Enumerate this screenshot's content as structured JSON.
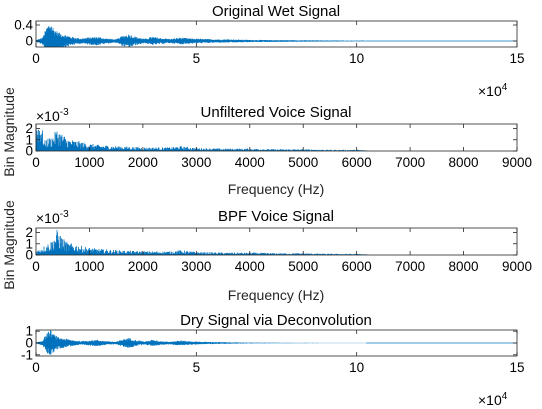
{
  "figure": {
    "background": "#ffffff",
    "line_color": "#0072bd",
    "axis_color": "#262626"
  },
  "chart_data": [
    {
      "type": "line",
      "title": "Original Wet Signal",
      "xlabel": "",
      "ylabel": "",
      "xlim": [
        0,
        150000
      ],
      "ylim": [
        -0.15,
        0.5
      ],
      "xticks": [
        0,
        50000,
        100000,
        150000
      ],
      "xtick_labels": [
        "0",
        "5",
        "10",
        "15"
      ],
      "yticks": [
        0,
        0.4
      ],
      "ytick_labels": [
        "0",
        "0.4"
      ],
      "x_exponent": "4",
      "y_exponent": "",
      "signal_end": 103000,
      "envelope": {
        "x": [
          0,
          2000,
          3500,
          4500,
          5500,
          7000,
          9000,
          11000,
          14000,
          16000,
          19000,
          22000,
          25000,
          27000,
          29000,
          31000,
          34000,
          36000,
          39000,
          42000,
          45000,
          48000,
          52000,
          56000,
          60000,
          65000,
          70000,
          80000,
          90000,
          103000
        ],
        "values": [
          0.02,
          0.08,
          0.35,
          0.45,
          0.3,
          0.2,
          0.15,
          0.1,
          0.06,
          0.08,
          0.1,
          0.06,
          0.04,
          0.12,
          0.16,
          0.1,
          0.05,
          0.1,
          0.07,
          0.05,
          0.08,
          0.06,
          0.05,
          0.04,
          0.04,
          0.03,
          0.025,
          0.02,
          0.015,
          0.01
        ]
      }
    },
    {
      "type": "line",
      "title": "Unfiltered Voice Signal",
      "xlabel": "Frequency (Hz)",
      "ylabel": "Bin Magnitude",
      "xlim": [
        0,
        9000
      ],
      "ylim": [
        0,
        0.0024
      ],
      "xticks": [
        0,
        1000,
        2000,
        3000,
        4000,
        5000,
        6000,
        7000,
        8000,
        9000
      ],
      "xtick_labels": [
        "0",
        "1000",
        "2000",
        "3000",
        "4000",
        "5000",
        "6000",
        "7000",
        "8000",
        "9000"
      ],
      "yticks": [
        0,
        0.001,
        0.002
      ],
      "ytick_labels": [
        "0",
        "1",
        "2"
      ],
      "x_exponent": "",
      "y_exponent": "-3",
      "signal_end": 6200,
      "envelope": {
        "x": [
          0,
          100,
          150,
          200,
          300,
          400,
          500,
          600,
          800,
          1000,
          1200,
          1500,
          2000,
          2500,
          2700,
          3000,
          3500,
          4000,
          4500,
          5000,
          5500,
          6000,
          6200
        ],
        "values": [
          0.0024,
          0.0024,
          0.0008,
          0.001,
          0.0012,
          0.0018,
          0.0014,
          0.001,
          0.0008,
          0.0006,
          0.0005,
          0.0004,
          0.0003,
          0.0003,
          0.0004,
          0.00025,
          0.0002,
          0.0002,
          0.00015,
          0.00015,
          0.0001,
          0.0001,
          5e-05
        ]
      }
    },
    {
      "type": "line",
      "title": "BPF Voice Signal",
      "xlabel": "Frequency (Hz)",
      "ylabel": "Bin Magnitude",
      "xlim": [
        0,
        9000
      ],
      "ylim": [
        0,
        0.0024
      ],
      "xticks": [
        0,
        1000,
        2000,
        3000,
        4000,
        5000,
        6000,
        7000,
        8000,
        9000
      ],
      "xtick_labels": [
        "0",
        "1000",
        "2000",
        "3000",
        "4000",
        "5000",
        "6000",
        "7000",
        "8000",
        "9000"
      ],
      "yticks": [
        0,
        0.001,
        0.002
      ],
      "ytick_labels": [
        "0",
        "1",
        "2"
      ],
      "x_exponent": "",
      "y_exponent": "-3",
      "signal_end": 6200,
      "envelope": {
        "x": [
          0,
          100,
          200,
          300,
          400,
          500,
          600,
          800,
          1000,
          1200,
          1500,
          2000,
          2500,
          2700,
          3000,
          3500,
          4000,
          4500,
          5000,
          5500,
          6000,
          6200
        ],
        "values": [
          0.0003,
          0.0006,
          0.0009,
          0.0012,
          0.0021,
          0.0014,
          0.001,
          0.0008,
          0.0006,
          0.0005,
          0.0004,
          0.0003,
          0.0003,
          0.0004,
          0.00025,
          0.0002,
          0.0002,
          0.00015,
          0.00015,
          0.0001,
          0.0001,
          5e-05
        ]
      }
    },
    {
      "type": "line",
      "title": "Dry Signal via Deconvolution",
      "xlabel": "",
      "ylabel": "",
      "xlim": [
        0,
        150000
      ],
      "ylim": [
        -1.1,
        1.1
      ],
      "xticks": [
        0,
        50000,
        100000,
        150000
      ],
      "xtick_labels": [
        "0",
        "5",
        "10",
        "15"
      ],
      "yticks": [
        -1,
        0,
        1
      ],
      "ytick_labels": [
        "-1",
        "0",
        "1"
      ],
      "x_exponent": "4",
      "y_exponent": "",
      "signal_end": 103000,
      "envelope": {
        "x": [
          0,
          2000,
          3500,
          4500,
          5500,
          7000,
          9000,
          11000,
          14000,
          16000,
          19000,
          22000,
          25000,
          27000,
          29000,
          31000,
          34000,
          36000,
          39000,
          42000,
          45000,
          48000,
          52000,
          56000,
          60000,
          65000,
          70000,
          80000,
          90000,
          103000
        ],
        "values": [
          0.05,
          0.2,
          0.8,
          1.0,
          0.7,
          0.45,
          0.35,
          0.25,
          0.15,
          0.2,
          0.25,
          0.15,
          0.1,
          0.3,
          0.4,
          0.25,
          0.12,
          0.25,
          0.15,
          0.12,
          0.2,
          0.14,
          0.1,
          0.08,
          0.06,
          0.04,
          0.03,
          0.02,
          0.015,
          0.01
        ]
      }
    }
  ]
}
